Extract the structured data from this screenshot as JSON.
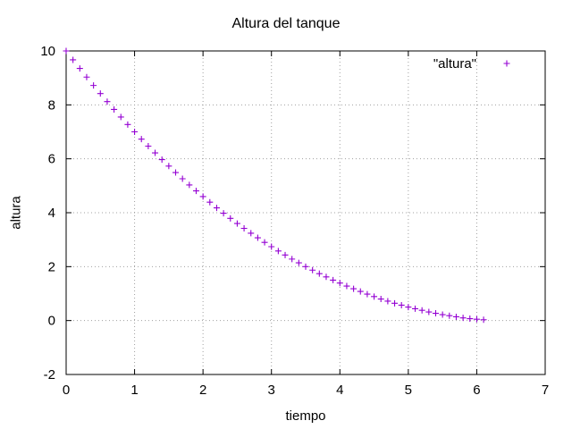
{
  "chart_data": {
    "type": "scatter",
    "title": "Altura del tanque",
    "xlabel": "tiempo",
    "ylabel": "altura",
    "xlim": [
      0,
      7
    ],
    "ylim": [
      -2,
      10
    ],
    "xticks": [
      0,
      1,
      2,
      3,
      4,
      5,
      6,
      7
    ],
    "yticks": [
      -2,
      0,
      2,
      4,
      6,
      8,
      10
    ],
    "grid": true,
    "legend_position": "top-right",
    "marker": "+",
    "series": [
      {
        "name": "\"altura\"",
        "color": "#9400d3",
        "x": [
          0,
          0.1,
          0.2,
          0.3,
          0.4,
          0.5,
          0.6,
          0.7,
          0.8,
          0.9,
          1.0,
          1.1,
          1.2,
          1.3,
          1.4,
          1.5,
          1.6,
          1.7,
          1.8,
          1.9,
          2.0,
          2.1,
          2.2,
          2.3,
          2.4,
          2.5,
          2.6,
          2.7,
          2.8,
          2.9,
          3.0,
          3.1,
          3.2,
          3.3,
          3.4,
          3.5,
          3.6,
          3.7,
          3.8,
          3.9,
          4.0,
          4.1,
          4.2,
          4.3,
          4.4,
          4.5,
          4.6,
          4.7,
          4.8,
          4.9,
          5.0,
          5.1,
          5.2,
          5.3,
          5.4,
          5.5,
          5.6,
          5.7,
          5.8,
          5.9,
          6.0,
          6.1
        ],
        "y": [
          10.0,
          9.67,
          9.35,
          9.03,
          8.72,
          8.42,
          8.12,
          7.83,
          7.55,
          7.27,
          7.0,
          6.73,
          6.47,
          6.22,
          5.97,
          5.73,
          5.49,
          5.26,
          5.03,
          4.81,
          4.6,
          4.39,
          4.18,
          3.98,
          3.79,
          3.6,
          3.42,
          3.24,
          3.07,
          2.9,
          2.74,
          2.58,
          2.43,
          2.28,
          2.14,
          2.0,
          1.87,
          1.74,
          1.62,
          1.5,
          1.39,
          1.28,
          1.18,
          1.08,
          0.98,
          0.89,
          0.8,
          0.72,
          0.64,
          0.57,
          0.5,
          0.44,
          0.38,
          0.32,
          0.27,
          0.22,
          0.18,
          0.14,
          0.1,
          0.07,
          0.05,
          0.03
        ]
      }
    ]
  }
}
